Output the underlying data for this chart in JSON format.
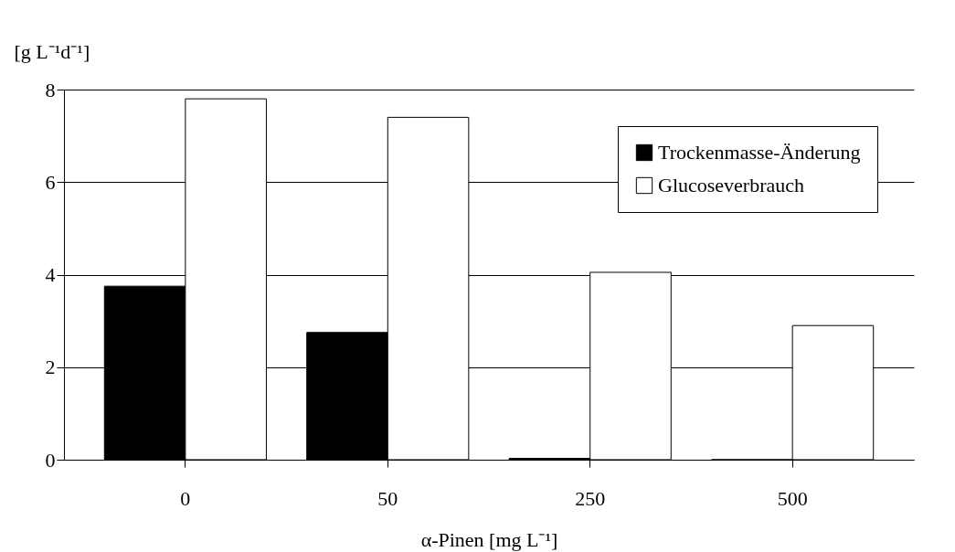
{
  "chart_data": {
    "type": "bar",
    "xlabel": "α-Pinen [mg L⁻¹]",
    "ylabel": "[g L⁻¹d⁻¹]",
    "categories": [
      "0",
      "50",
      "250",
      "500"
    ],
    "series": [
      {
        "name": "Trockenmasse-Änderung",
        "color": "#000000",
        "values": [
          3.75,
          2.75,
          0.03,
          0
        ]
      },
      {
        "name": "Glucoseverbrauch",
        "color": "#ffffff",
        "values": [
          7.8,
          7.4,
          4.05,
          2.9
        ]
      }
    ],
    "ylim": [
      0,
      8
    ],
    "yticks": [
      0,
      2,
      4,
      6,
      8
    ],
    "grid": "y",
    "legend": "top right"
  }
}
